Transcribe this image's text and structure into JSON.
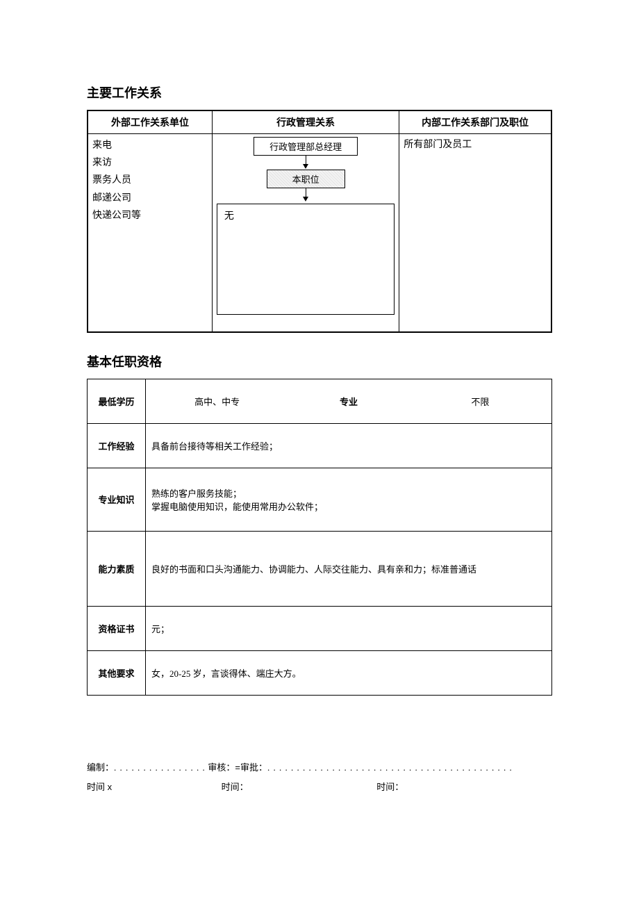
{
  "section1": {
    "title": "主要工作关系",
    "headers": [
      "外部工作关系单位",
      "行政管理关系",
      "内部工作关系部门及职位"
    ],
    "external_items": [
      "来电",
      "来访",
      "票务人员",
      "邮递公司",
      "快递公司等"
    ],
    "flow_top": "行政管理部总经理",
    "flow_mid": "本职位",
    "flow_bottom": "无",
    "internal": "所有部门及员工"
  },
  "section2": {
    "title": "基本任职资格",
    "rows": {
      "edu_label": "最低学历",
      "edu_value": "高中、中专",
      "major_label": "专业",
      "major_value": "不限",
      "exp_label": "工作经验",
      "exp_value": "具备前台接待等相关工作经验；",
      "knowledge_label": "专业知识",
      "knowledge_line1": "熟练的客户服务技能；",
      "knowledge_line2": "掌握电脑使用知识，能使用常用办公软件；",
      "ability_label": "能力素质",
      "ability_value": "良好的书面和口头沟通能力、协调能力、人际交往能力、具有亲和力；标准普通话",
      "cert_label": "资格证书",
      "cert_value": "元；",
      "other_label": "其他要求",
      "other_value": "女，20-25 岁，言谈得体、端庄大方。"
    }
  },
  "footer": {
    "line1_prepare": "编制：",
    "line1_review": "审核：=审批：",
    "dots1": ". . . . . . . . . . . . . . . .",
    "dots2": ". . . . . . . . . . . . . . . . . . . . . . . . . . . . . . . . . . . . . . . . . .",
    "line2_time1": "时间 x",
    "line2_time2": "时间：",
    "line2_time3": "时间："
  }
}
